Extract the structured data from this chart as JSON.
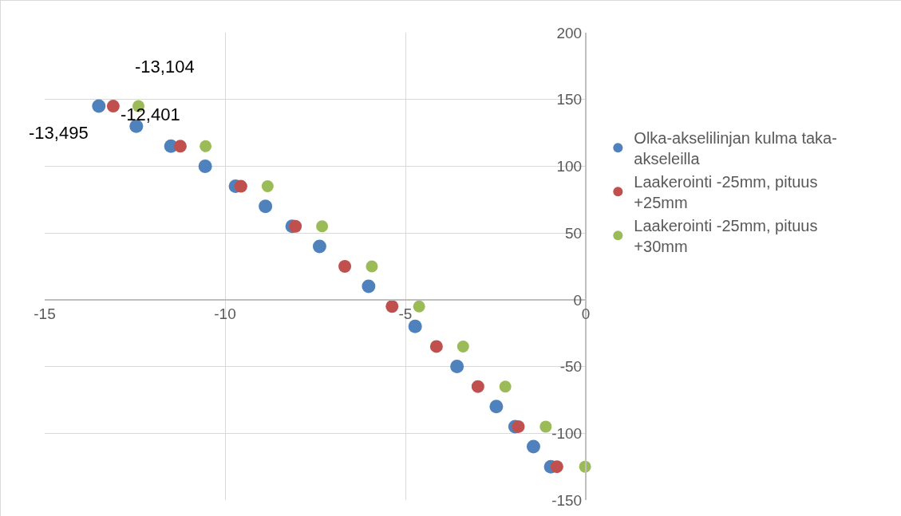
{
  "chart_data": {
    "type": "scatter",
    "xlim": [
      -15,
      0
    ],
    "ylim": [
      -150,
      200
    ],
    "xticks": [
      -15,
      -10,
      -5,
      0
    ],
    "yticks": [
      -150,
      -100,
      -50,
      0,
      50,
      100,
      150,
      200
    ],
    "grid": true,
    "legend": "right",
    "marker": "circle",
    "series": [
      {
        "name": "Olka-akselilinjan kulma taka-akseleilla",
        "color": "#4f81bd",
        "x": [
          -13.5,
          -12.46,
          -11.5,
          -10.55,
          -9.71,
          -8.88,
          -8.14,
          -7.38,
          -6.02,
          -4.73,
          -3.57,
          -2.48,
          -1.96,
          -1.45,
          -0.97
        ],
        "values": [
          145,
          130,
          115,
          100,
          85,
          70,
          55,
          40,
          10,
          -20,
          -50,
          -80,
          -95,
          -110,
          -125
        ]
      },
      {
        "name": "Laakerointi -25mm, pituus +25mm",
        "color": "#c0504d",
        "x": [
          -13.1,
          -11.24,
          -9.56,
          -8.05,
          -6.68,
          -5.37,
          -4.14,
          -2.99,
          -1.87,
          -0.8
        ],
        "values": [
          145,
          115,
          85,
          55,
          25,
          -5,
          -35,
          -65,
          -95,
          -125
        ]
      },
      {
        "name": "Laakerointi -25mm, pituus +30mm",
        "color": "#9bbb59",
        "x": [
          -12.4,
          -10.54,
          -8.82,
          -7.31,
          -5.93,
          -4.62,
          -3.4,
          -2.23,
          -1.11,
          -0.02
        ],
        "values": [
          145,
          115,
          85,
          55,
          25,
          -5,
          -35,
          -65,
          -95,
          -125
        ]
      }
    ],
    "annotations": [
      {
        "text": "-13,495",
        "x": -13.5,
        "y": 145
      },
      {
        "text": "-13,104",
        "x": -13.1,
        "y": 145
      },
      {
        "text": "-12,401",
        "x": -12.4,
        "y": 145
      }
    ]
  }
}
